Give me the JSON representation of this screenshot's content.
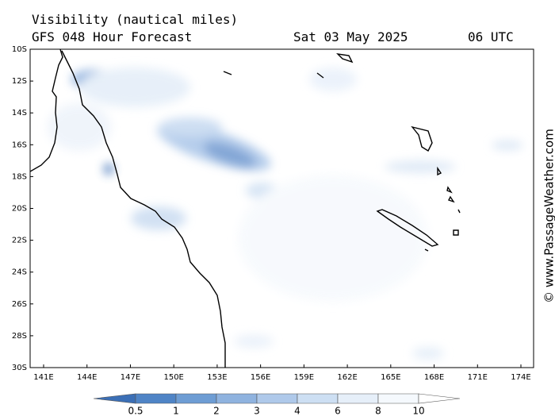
{
  "header": {
    "title": "Visibility (nautical miles)",
    "subtitle": "GFS 048 Hour Forecast",
    "date": "Sat 03 May 2025",
    "time": "06 UTC"
  },
  "axes": {
    "lat_labels": [
      "10S",
      "12S",
      "14S",
      "16S",
      "18S",
      "20S",
      "22S",
      "24S",
      "26S",
      "28S",
      "30S"
    ],
    "lon_labels": [
      "141E",
      "144E",
      "147E",
      "150E",
      "153E",
      "156E",
      "159E",
      "162E",
      "165E",
      "168E",
      "171E",
      "174E"
    ]
  },
  "legend": {
    "ticks": [
      0.5,
      1,
      2,
      3,
      4,
      6,
      8,
      10
    ],
    "colors": [
      "#3b6fb6",
      "#4f84c6",
      "#6e9dd4",
      "#8fb3df",
      "#afc9ea",
      "#cddff3",
      "#e6eff9",
      "#f5f9fd",
      "#ffffff"
    ]
  },
  "watermark": "© www.PassageWeather.com"
}
